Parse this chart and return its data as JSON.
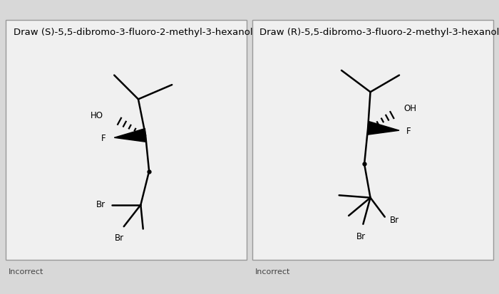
{
  "bg_color": "#d8d8d8",
  "panel_bg": "#f0f0f0",
  "title_S": "Draw (S)-5,5-dibromo-3-fluoro-2-methyl-3-hexanol.",
  "title_R": "Draw (R)-5,5-dibromo-3-fluoro-2-methyl-3-hexanol.",
  "incorrect_label": "Incorrect",
  "line_color": "#000000",
  "line_width": 1.8,
  "label_fontsize": 8.5,
  "title_fontsize": 9.5,
  "incorrect_fontsize": 8.0
}
